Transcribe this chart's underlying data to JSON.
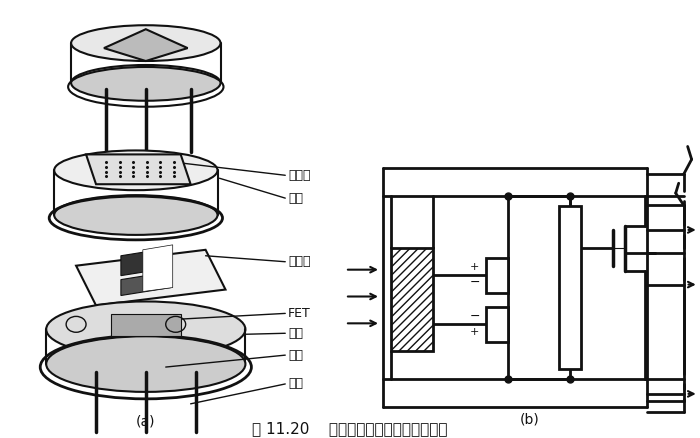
{
  "title": "图 11.20    热释电人体红外传感器的结构",
  "label_a": "(a)",
  "label_b": "(b)",
  "bg_color": "#ffffff",
  "line_color": "#111111",
  "fig_width": 7.0,
  "fig_height": 4.38,
  "label_lvguangpian": "滤光片",
  "label_guanmao": "管帽",
  "label_minganen": "敏感元",
  "label_FET": "FET",
  "label_guanzuo": "管座",
  "label_gaozhu": "高阱",
  "label_yinxian": "引线"
}
